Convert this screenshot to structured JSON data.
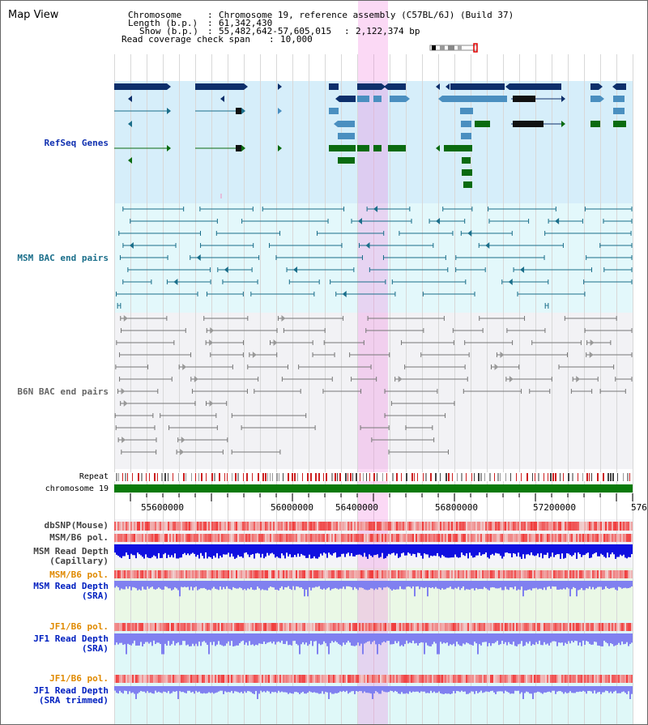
{
  "header": {
    "title": "Map View",
    "chromosome_label": "Chromosome",
    "chromosome_value": "Chromosome 19, reference assembly (C57BL/6J) (Build 37)",
    "length_label": "Length (b.p.)",
    "length_value": "61,342,430",
    "show_label": "Show (b.p.)",
    "show_range": "55,482,642-57,605,015",
    "show_size": "2,122,374 bp",
    "coverage_label": "Read coverage check span",
    "coverage_value": "10,000"
  },
  "tracks": {
    "refseq": "RefSeq Genes",
    "msm_bac": "MSM BAC end pairs",
    "b6n_bac": "B6N BAC end pairs",
    "repeat": "Repeat",
    "chromosome": "chromosome 19",
    "dbsnp": "dbSNP(Mouse)",
    "msm_b6_pol": "MSM/B6 pol.",
    "msm_depth_cap_1": "MSM Read Depth",
    "msm_depth_cap_2": "(Capillary)",
    "msm_b6_pol_2": "MSM/B6 pol.",
    "msm_depth_sra_1": "MSM Read Depth",
    "msm_depth_sra_2": "(SRA)",
    "jf1_b6_pol": "JF1/B6 pol.",
    "jf1_depth_sra_1": "JF1 Read Depth",
    "jf1_depth_sra_2": "(SRA)",
    "jf1_b6_pol_2": "JF1/B6 pol.",
    "jf1_depth_trim_1": "JF1 Read Depth",
    "jf1_depth_trim_2": "(SRA trimmed)"
  },
  "axis": {
    "ticks": [
      "55600000",
      "56000000",
      "56400000",
      "56800000",
      "57200000",
      "576"
    ]
  },
  "colors": {
    "refseq_dark": "#0d2f6b",
    "refseq_mid": "#4a8fc0",
    "refseq_green": "#0a6b10",
    "msm_line": "#1a6e8a",
    "b6n_line": "#777777",
    "highlight": "#f5b0ea",
    "chromosome": "#0a7a0a",
    "pol_red": "#f04848",
    "depth_blue": "#1010e0",
    "depth_light": "#8080f0"
  }
}
